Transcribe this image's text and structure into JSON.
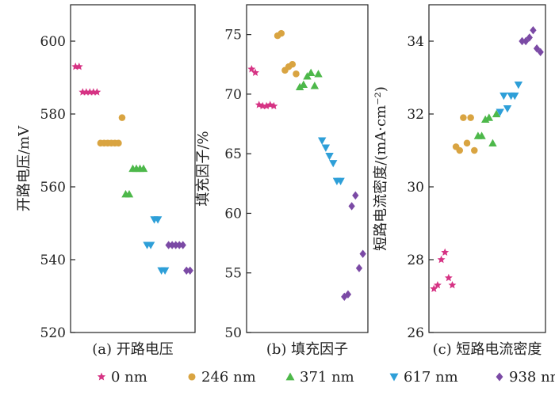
{
  "chart_data": [
    {
      "type": "scatter",
      "caption": "(a) 开路电压",
      "ylabel": "开路电压/mV",
      "ylim": [
        520,
        610
      ],
      "yticks": [
        520,
        540,
        560,
        580,
        600
      ],
      "series": [
        {
          "name": "0 nm",
          "values": [
            593,
            593,
            586,
            586,
            586,
            586,
            586
          ]
        },
        {
          "name": "246 nm",
          "values": [
            572,
            572,
            572,
            572,
            572,
            572,
            579
          ]
        },
        {
          "name": "371 nm",
          "values": [
            558,
            558,
            565,
            565,
            565,
            565
          ]
        },
        {
          "name": "617 nm",
          "values": [
            544,
            544,
            551,
            551,
            537,
            537
          ]
        },
        {
          "name": "938 nm",
          "values": [
            544,
            544,
            544,
            544,
            544,
            537,
            537
          ]
        }
      ]
    },
    {
      "type": "scatter",
      "caption": "(b) 填充因子",
      "ylabel": "填充因子/%",
      "ylim": [
        50,
        77.5
      ],
      "yticks": [
        50,
        55,
        60,
        65,
        70,
        75
      ],
      "series": [
        {
          "name": "0 nm",
          "values": [
            72.1,
            71.8,
            69.1,
            69.0,
            69.0,
            69.1,
            69.0
          ]
        },
        {
          "name": "246 nm",
          "values": [
            74.9,
            75.1,
            72.0,
            72.3,
            72.5,
            71.7
          ]
        },
        {
          "name": "371 nm",
          "values": [
            70.6,
            70.8,
            71.5,
            71.8,
            70.7,
            71.7
          ]
        },
        {
          "name": "617 nm",
          "values": [
            66.1,
            65.5,
            64.8,
            64.2,
            62.7,
            62.7
          ]
        },
        {
          "name": "938 nm",
          "values": [
            53.0,
            53.2,
            60.6,
            61.5,
            55.4,
            56.6
          ]
        }
      ]
    },
    {
      "type": "scatter",
      "caption": "(c) 短路电流密度",
      "ylabel": "短路电流密度/(mA·cm⁻²)",
      "ylim": [
        26,
        35
      ],
      "yticks": [
        26,
        28,
        30,
        32,
        34
      ],
      "series": [
        {
          "name": "0 nm",
          "values": [
            27.2,
            27.3,
            28.0,
            28.2,
            27.5,
            27.3
          ]
        },
        {
          "name": "246 nm",
          "values": [
            31.1,
            31.0,
            31.9,
            31.2,
            31.9,
            31.0
          ]
        },
        {
          "name": "371 nm",
          "values": [
            31.4,
            31.4,
            31.85,
            31.9,
            31.2,
            32.0
          ]
        },
        {
          "name": "617 nm",
          "values": [
            32.05,
            32.5,
            32.15,
            32.5,
            32.5,
            32.8
          ]
        },
        {
          "name": "938 nm",
          "values": [
            34.0,
            34.0,
            34.1,
            34.3,
            33.8,
            33.7
          ]
        }
      ]
    }
  ],
  "legend": {
    "placement": "bottom",
    "items": [
      {
        "label": "0 nm",
        "marker": "star",
        "color": "#d63384"
      },
      {
        "label": "246 nm",
        "marker": "circle",
        "color": "#d9a441"
      },
      {
        "label": "371 nm",
        "marker": "triangle-up",
        "color": "#4db84a"
      },
      {
        "label": "617 nm",
        "marker": "triangle-down",
        "color": "#2e9fd8"
      },
      {
        "label": "938 nm",
        "marker": "diamond",
        "color": "#7b4aa5"
      }
    ]
  }
}
